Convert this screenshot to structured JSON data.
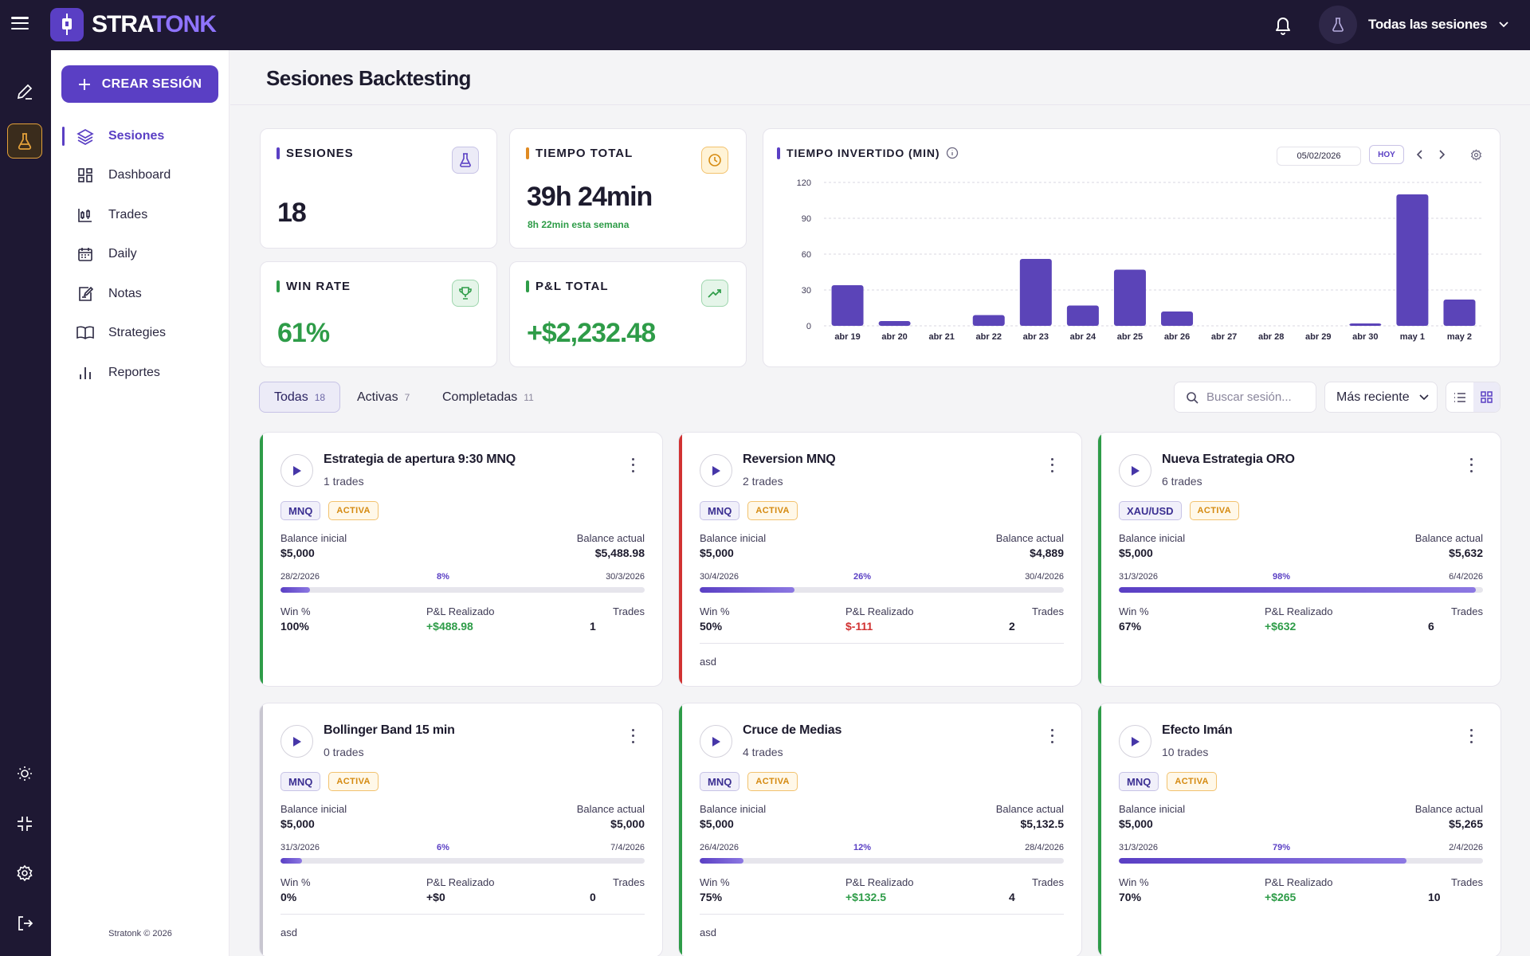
{
  "brand": {
    "name_a": "STRA",
    "name_b": "TONK"
  },
  "header": {
    "session_selector": "Todas las sesiones"
  },
  "sidebar": {
    "create_label": "CREAR SESIÓN",
    "items": [
      {
        "label": "Sesiones",
        "icon": "layers-icon"
      },
      {
        "label": "Dashboard",
        "icon": "dashboard-icon"
      },
      {
        "label": "Trades",
        "icon": "candles-icon"
      },
      {
        "label": "Daily",
        "icon": "calendar-icon"
      },
      {
        "label": "Notas",
        "icon": "notes-icon"
      },
      {
        "label": "Strategies",
        "icon": "book-icon"
      },
      {
        "label": "Reportes",
        "icon": "bar-chart-icon"
      }
    ],
    "copyright": "Stratonk © 2026"
  },
  "page": {
    "title": "Sesiones Backtesting"
  },
  "stats": {
    "sessions": {
      "label": "SESIONES",
      "value": "18",
      "color": "#5a3fc4"
    },
    "time": {
      "label": "TIEMPO TOTAL",
      "value": "39h 24min",
      "sub": "8h 22min esta semana",
      "color": "#e08a22"
    },
    "winrate": {
      "label": "WIN RATE",
      "value": "61%",
      "color": "#2e9c48"
    },
    "pnl": {
      "label": "P&L TOTAL",
      "value": "+$2,232.48",
      "color": "#2e9c48"
    }
  },
  "chart": {
    "title": "TIEMPO INVERTIDO (MIN)",
    "date": "05/02/2026",
    "today_label": "HOY"
  },
  "chart_data": {
    "type": "bar",
    "categories": [
      "abr 19",
      "abr 20",
      "abr 21",
      "abr 22",
      "abr 23",
      "abr 24",
      "abr 25",
      "abr 26",
      "abr 27",
      "abr 28",
      "abr 29",
      "abr 30",
      "may 1",
      "may 2"
    ],
    "values": [
      34,
      4,
      0,
      9,
      56,
      17,
      47,
      12,
      0,
      0,
      0,
      2,
      110,
      22
    ],
    "yticks": [
      0,
      30,
      60,
      90,
      120
    ],
    "ylim": [
      0,
      120
    ],
    "grid": true,
    "color": "#5b44b8"
  },
  "filters": {
    "tabs": [
      {
        "label": "Todas",
        "count": "18"
      },
      {
        "label": "Activas",
        "count": "7"
      },
      {
        "label": "Completadas",
        "count": "11"
      }
    ],
    "search_placeholder": "Buscar sesión...",
    "sort": "Más reciente"
  },
  "labels": {
    "balance_inicial": "Balance inicial",
    "balance_actual": "Balance actual",
    "win": "Win %",
    "pnl": "P&L Realizado",
    "trades": "Trades"
  },
  "sessions": [
    {
      "name": "Estrategia de apertura 9:30 MNQ",
      "trades_text": "1 trades",
      "symbol": "MNQ",
      "status": "ACTIVA",
      "accent": "#2e9c48",
      "balance_start": "$5,000",
      "balance_now": "$5,488.98",
      "date_start": "28/2/2026",
      "date_end": "30/3/2026",
      "progress_label": "8%",
      "progress": 0.08,
      "win": "100%",
      "pnl": "+$488.98",
      "pnl_sign": "pos",
      "trades": "1",
      "note": ""
    },
    {
      "name": "Reversion MNQ",
      "trades_text": "2 trades",
      "symbol": "MNQ",
      "status": "ACTIVA",
      "accent": "#d13232",
      "balance_start": "$5,000",
      "balance_now": "$4,889",
      "date_start": "30/4/2026",
      "date_end": "30/4/2026",
      "progress_label": "26%",
      "progress": 0.26,
      "win": "50%",
      "pnl": "$-111",
      "pnl_sign": "neg",
      "trades": "2",
      "note": "asd"
    },
    {
      "name": "Nueva Estrategia ORO",
      "trades_text": "6 trades",
      "symbol": "XAU/USD",
      "status": "ACTIVA",
      "accent": "#2e9c48",
      "balance_start": "$5,000",
      "balance_now": "$5,632",
      "date_start": "31/3/2026",
      "date_end": "6/4/2026",
      "progress_label": "98%",
      "progress": 0.98,
      "win": "67%",
      "pnl": "+$632",
      "pnl_sign": "pos",
      "trades": "6",
      "note": ""
    },
    {
      "name": "Bollinger Band 15 min",
      "trades_text": "0 trades",
      "symbol": "MNQ",
      "status": "ACTIVA",
      "accent": "#c8c6d0",
      "balance_start": "$5,000",
      "balance_now": "$5,000",
      "date_start": "31/3/2026",
      "date_end": "7/4/2026",
      "progress_label": "6%",
      "progress": 0.06,
      "win": "0%",
      "pnl": "+$0",
      "pnl_sign": "zero",
      "trades": "0",
      "note": "asd"
    },
    {
      "name": "Cruce de Medias",
      "trades_text": "4 trades",
      "symbol": "MNQ",
      "status": "ACTIVA",
      "accent": "#2e9c48",
      "balance_start": "$5,000",
      "balance_now": "$5,132.5",
      "date_start": "26/4/2026",
      "date_end": "28/4/2026",
      "progress_label": "12%",
      "progress": 0.12,
      "win": "75%",
      "pnl": "+$132.5",
      "pnl_sign": "pos",
      "trades": "4",
      "note": "asd"
    },
    {
      "name": "Efecto Imán",
      "trades_text": "10 trades",
      "symbol": "MNQ",
      "status": "ACTIVA",
      "accent": "#2e9c48",
      "balance_start": "$5,000",
      "balance_now": "$5,265",
      "date_start": "31/3/2026",
      "date_end": "2/4/2026",
      "progress_label": "79%",
      "progress": 0.79,
      "win": "70%",
      "pnl": "+$265",
      "pnl_sign": "pos",
      "trades": "10",
      "note": ""
    }
  ]
}
